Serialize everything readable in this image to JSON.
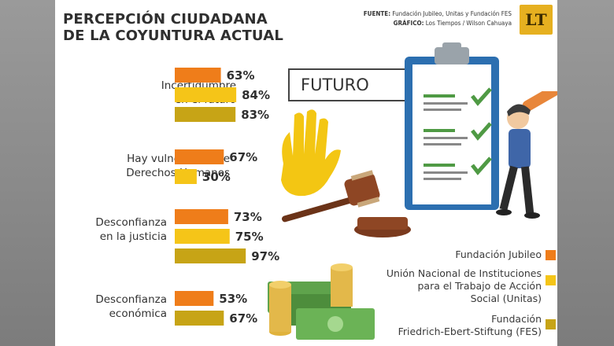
{
  "header": {
    "title_line1": "PERCEPCIÓN CIUDADANA",
    "title_line2": "DE LA COYUNTURA ACTUAL",
    "source_label": "FUENTE:",
    "source_text": "Fundación Jubileo, Unitas y Fundación FES",
    "graphic_label": "GRÁFICO:",
    "graphic_text": "Los Tiempos / Wilson Cahuaya",
    "logo_text": "LT"
  },
  "illustration": {
    "futuro_label": "FUTURO"
  },
  "colors": {
    "jubileo": "#ef7d1a",
    "unitas": "#f5c518",
    "fes": "#c7a416"
  },
  "chart_data": {
    "type": "bar",
    "orientation": "horizontal",
    "title": "PERCEPCIÓN CIUDADANA DE LA COYUNTURA ACTUAL",
    "xlim": [
      0,
      100
    ],
    "unit": "%",
    "categories": [
      "Incertidumbre en el futuro",
      "Hay vulneración de Derechos Humanos",
      "Desconfianza en la justicia",
      "Desconfianza económica"
    ],
    "category_lines": [
      [
        "Incertidumbre",
        "en el futuro"
      ],
      [
        "Hay vulneración de",
        "Derechos Humanos"
      ],
      [
        "Desconfianza",
        "en la justicia"
      ],
      [
        "Desconfianza",
        "económica"
      ]
    ],
    "groups": [
      {
        "bars": [
          {
            "series": "Fundación Jubileo",
            "value": 63,
            "label": "63%"
          },
          {
            "series": "Unión Nacional de Instituciones para el Trabajo de Acción Social (Unitas)",
            "value": 84,
            "label": "84%"
          },
          {
            "series": "Fundación Friedrich-Ebert-Stiftung (FES)",
            "value": 83,
            "label": "83%"
          }
        ]
      },
      {
        "bars": [
          {
            "series": "Fundación Jubileo",
            "value": 67,
            "label": "67%"
          },
          {
            "series": "Unión Nacional de Instituciones para el Trabajo de Acción Social (Unitas)",
            "value": 30,
            "label": "30%"
          }
        ]
      },
      {
        "bars": [
          {
            "series": "Fundación Jubileo",
            "value": 73,
            "label": "73%"
          },
          {
            "series": "Unión Nacional de Instituciones para el Trabajo de Acción Social (Unitas)",
            "value": 75,
            "label": "75%"
          },
          {
            "series": "Fundación Friedrich-Ebert-Stiftung (FES)",
            "value": 97,
            "label": "97%"
          }
        ]
      },
      {
        "bars": [
          {
            "series": "Fundación Jubileo",
            "value": 53,
            "label": "53%"
          },
          {
            "series": "Fundación Friedrich-Ebert-Stiftung (FES)",
            "value": 67,
            "label": "67%"
          }
        ]
      }
    ],
    "legend": [
      {
        "name": "Fundación Jubileo",
        "lines": [
          "Fundación Jubileo"
        ],
        "color": "#ef7d1a"
      },
      {
        "name": "Unión Nacional de Instituciones para el Trabajo de Acción Social (Unitas)",
        "lines": [
          "Unión Nacional de Instituciones",
          "para el Trabajo de Acción",
          "Social (Unitas)"
        ],
        "color": "#f5c518"
      },
      {
        "name": "Fundación Friedrich-Ebert-Stiftung (FES)",
        "lines": [
          "Fundación",
          "Friedrich-Ebert-Stiftung (FES)"
        ],
        "color": "#c7a416"
      }
    ],
    "legend_position": "bottom-right",
    "grid": false
  }
}
